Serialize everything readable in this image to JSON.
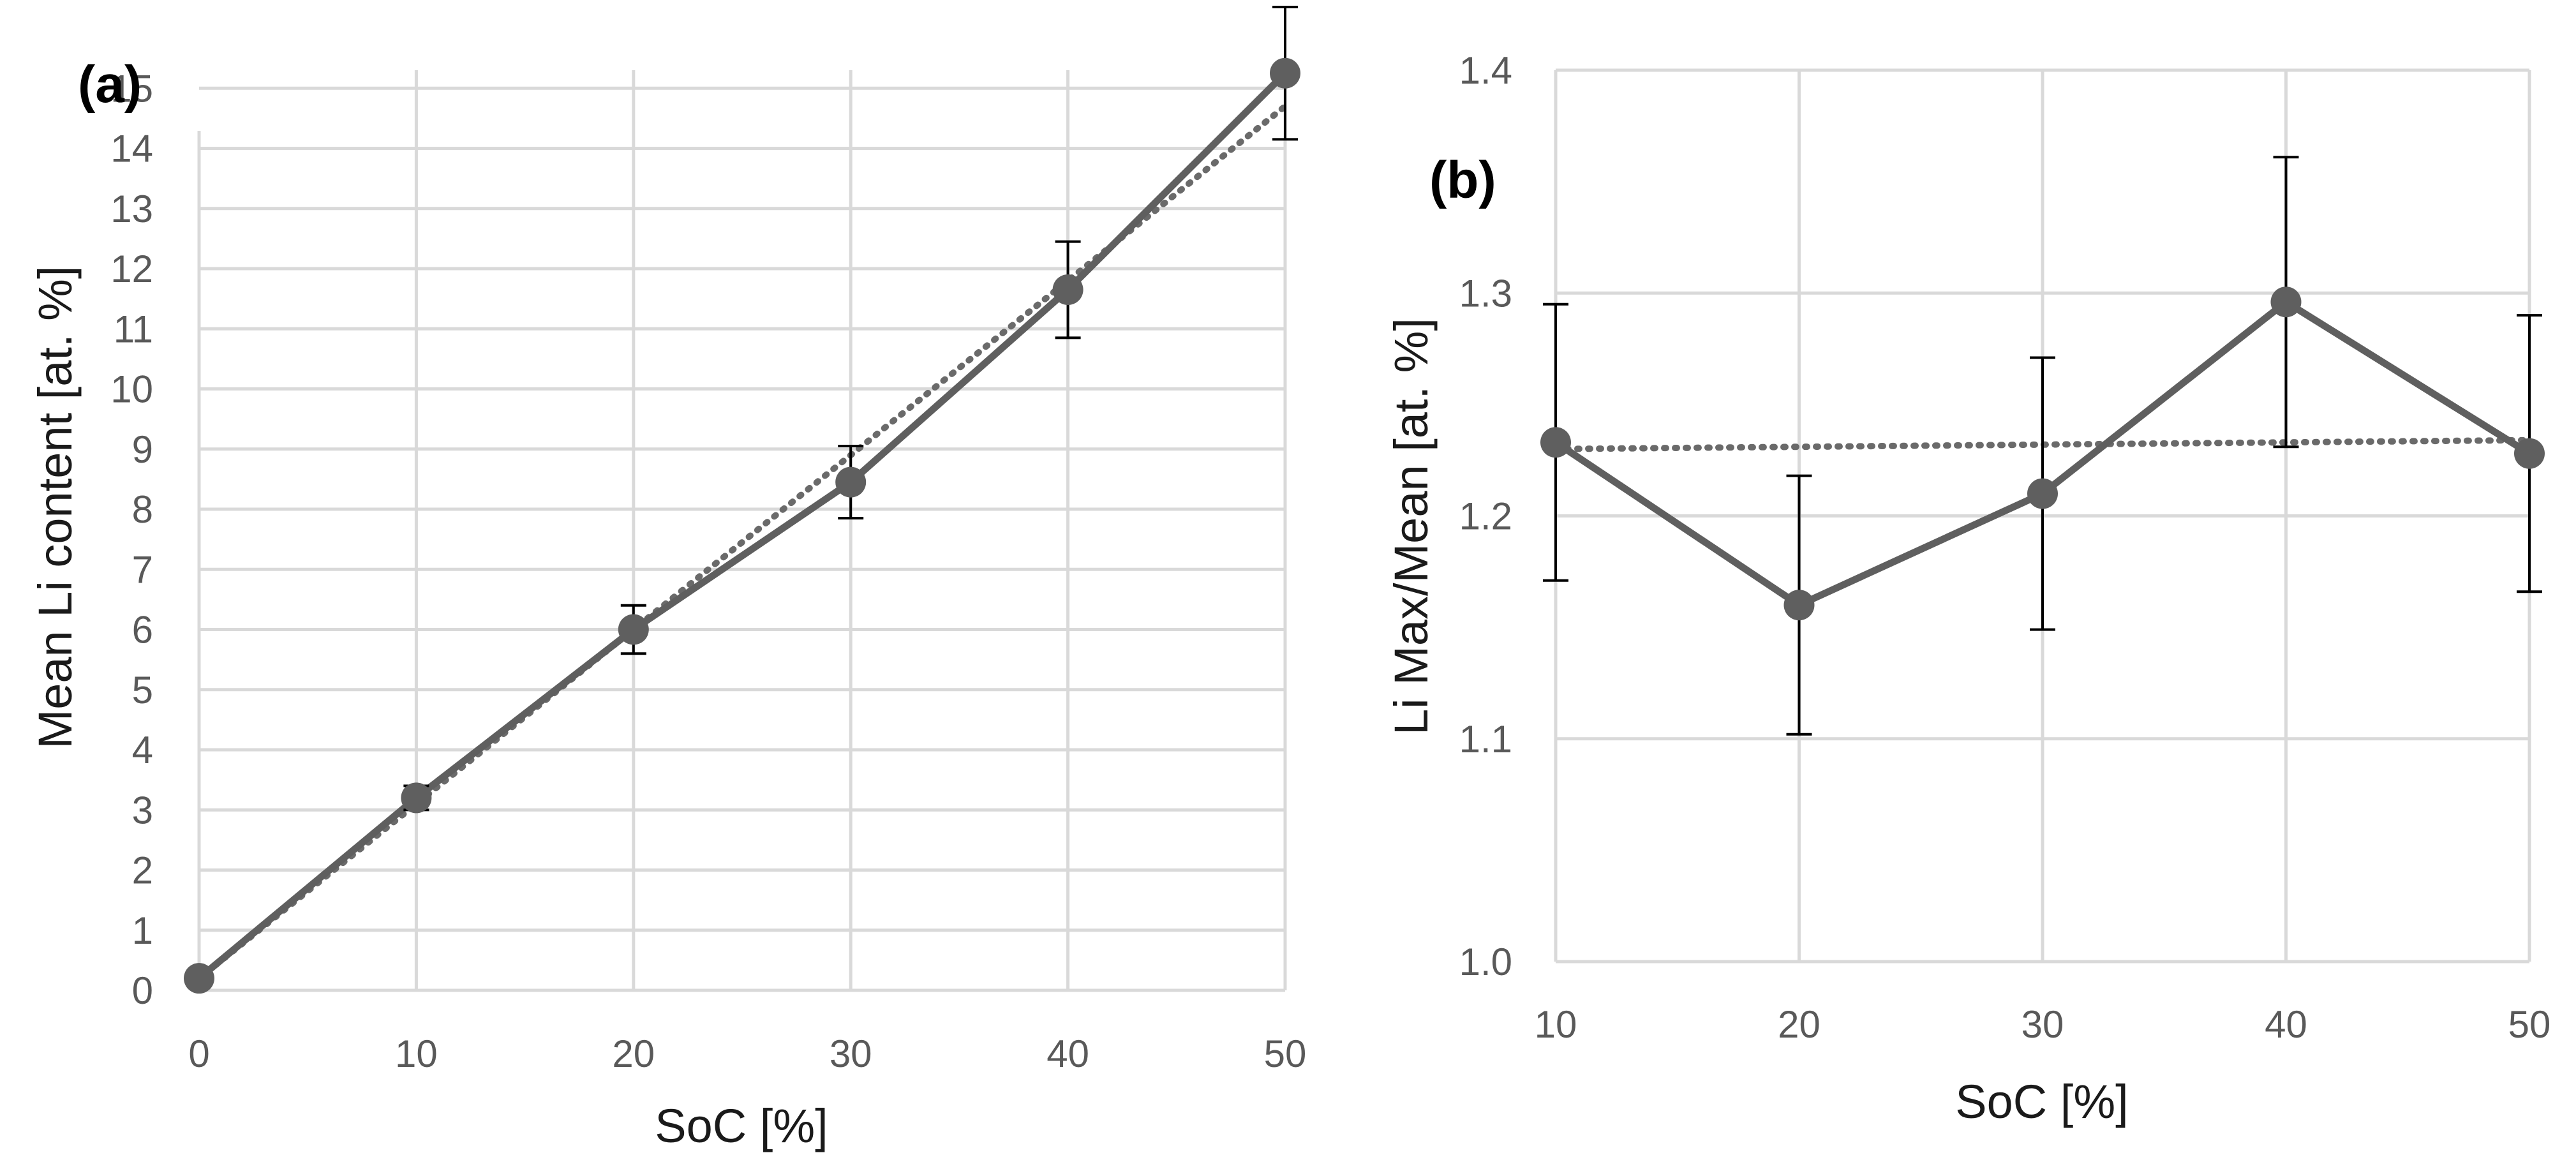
{
  "chart_data": [
    {
      "id": "a",
      "type": "line",
      "panel_label": "(a)",
      "title": "",
      "xlabel": "SoC [%]",
      "ylabel": "Mean Li content [at. %]",
      "x": [
        0,
        10,
        20,
        30,
        40,
        50
      ],
      "xticks": [
        "0",
        "10",
        "20",
        "30",
        "40",
        "50"
      ],
      "yticks": [
        "0",
        "1",
        "2",
        "3",
        "4",
        "5",
        "6",
        "7",
        "8",
        "9",
        "10",
        "11",
        "12",
        "13",
        "14",
        "15"
      ],
      "xlim": [
        0,
        50
      ],
      "ylim": [
        0,
        15.3
      ],
      "grid": true,
      "series": [
        {
          "name": "Mean Li content",
          "values": [
            0.2,
            3.2,
            6.0,
            8.45,
            11.65,
            15.25
          ],
          "errors": [
            0.0,
            0.2,
            0.4,
            0.6,
            0.8,
            1.1
          ]
        }
      ],
      "trendline": {
        "type": "linear",
        "slope": 0.29,
        "intercept": 0.2
      },
      "colors": {
        "series": "#5f5f5f",
        "grid": "#d9d9d9",
        "error": "#000000"
      }
    },
    {
      "id": "b",
      "type": "line",
      "panel_label": "(b)",
      "title": "",
      "xlabel": "SoC [%]",
      "ylabel": "Li Max/Mean [at. %]",
      "x": [
        10,
        20,
        30,
        40,
        50
      ],
      "xticks": [
        "10",
        "20",
        "30",
        "40",
        "50"
      ],
      "yticks": [
        "1.0",
        "1.1",
        "1.2",
        "1.3",
        "1.4"
      ],
      "xlim": [
        10,
        50
      ],
      "ylim": [
        1.0,
        1.4
      ],
      "grid": true,
      "series": [
        {
          "name": "Li Max/Mean",
          "values": [
            1.233,
            1.16,
            1.21,
            1.296,
            1.228
          ],
          "errors": [
            0.062,
            0.058,
            0.061,
            0.065,
            0.062
          ]
        }
      ],
      "trendline": {
        "type": "linear",
        "slope": 0.0001,
        "intercept": 1.229
      },
      "colors": {
        "series": "#5f5f5f",
        "grid": "#d9d9d9",
        "error": "#000000"
      }
    }
  ]
}
